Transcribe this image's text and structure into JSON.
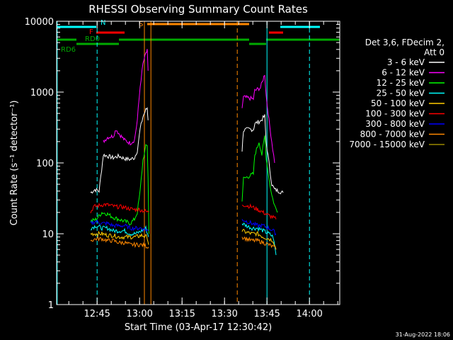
{
  "chart_data": {
    "type": "line",
    "title": "RHESSI Observing Summary Count Rates",
    "xlabel": "Start Time (03-Apr-17 12:30:42)",
    "ylabel": "Count Rate (s⁻¹ detector⁻¹)",
    "yscale": "log",
    "ylim": [
      1,
      10000
    ],
    "xlim_minutes": [
      0,
      100
    ],
    "grid": false,
    "x_ticks": [
      {
        "label": "12:45",
        "t": 14.3
      },
      {
        "label": "13:00",
        "t": 29.3
      },
      {
        "label": "13:15",
        "t": 44.3
      },
      {
        "label": "13:30",
        "t": 59.3
      },
      {
        "label": "13:45",
        "t": 74.3
      },
      {
        "label": "14:00",
        "t": 89.3
      }
    ],
    "y_ticks": [
      {
        "label": "1",
        "v": 1
      },
      {
        "label": "10",
        "v": 10
      },
      {
        "label": "100",
        "v": 100
      },
      {
        "label": "1000",
        "v": 1000
      },
      {
        "label": "10000",
        "v": 10000
      }
    ],
    "legend": {
      "placement": "right",
      "header": [
        "Det 3,6, FDecim 2,",
        "Att 0"
      ]
    },
    "series": [
      {
        "name": "3 - 6 keV",
        "color": "#ffffff",
        "segments": [
          [
            [
              12.0,
              38
            ],
            [
              13.5,
              42
            ],
            [
              15.0,
              40
            ],
            [
              16.5,
              130
            ],
            [
              18,
              125
            ],
            [
              20,
              118
            ],
            [
              22,
              125
            ],
            [
              24,
              115
            ],
            [
              26,
              112
            ],
            [
              27.5,
              118
            ],
            [
              28.5,
              150
            ],
            [
              29.5,
              300
            ],
            [
              30.5,
              450
            ],
            [
              31.5,
              560
            ],
            [
              32,
              600
            ],
            [
              32.3,
              400
            ]
          ],
          [
            [
              65.5,
              150
            ],
            [
              66.0,
              290
            ],
            [
              68,
              300
            ],
            [
              69.5,
              295
            ],
            [
              70,
              360
            ],
            [
              72,
              390
            ],
            [
              73.5,
              460
            ],
            [
              74,
              200
            ],
            [
              75,
              100
            ],
            [
              76,
              50
            ],
            [
              77,
              42
            ],
            [
              78.5,
              40
            ],
            [
              80,
              38
            ]
          ]
        ]
      },
      {
        "name": "6 - 12 keV",
        "color": "#ff00ff",
        "segments": [
          [
            [
              16.5,
              200
            ],
            [
              18,
              230
            ],
            [
              20,
              240
            ],
            [
              21,
              300
            ],
            [
              22,
              260
            ],
            [
              24,
              210
            ],
            [
              26,
              190
            ],
            [
              27.5,
              210
            ],
            [
              28.5,
              400
            ],
            [
              29.5,
              1200
            ],
            [
              30.5,
              2500
            ],
            [
              31.5,
              3500
            ],
            [
              32,
              3800
            ],
            [
              32.3,
              2000
            ]
          ],
          [
            [
              65.5,
              600
            ],
            [
              66.0,
              850
            ],
            [
              68,
              820
            ],
            [
              69.5,
              800
            ],
            [
              70,
              1050
            ],
            [
              72,
              1150
            ],
            [
              73.5,
              1800
            ],
            [
              74,
              900
            ],
            [
              75,
              400
            ],
            [
              76,
              200
            ],
            [
              77,
              100
            ]
          ]
        ]
      },
      {
        "name": "12 - 25 keV",
        "color": "#00ff00",
        "segments": [
          [
            [
              12.0,
              15
            ],
            [
              14,
              16
            ],
            [
              16,
              20
            ],
            [
              18,
              19
            ],
            [
              20,
              17
            ],
            [
              22,
              16
            ],
            [
              24,
              15
            ],
            [
              26,
              14
            ],
            [
              27.5,
              16
            ],
            [
              28.5,
              20
            ],
            [
              29.5,
              40
            ],
            [
              30.5,
              110
            ],
            [
              31.5,
              170
            ],
            [
              32,
              180
            ],
            [
              32.3,
              60
            ],
            [
              32.6,
              10
            ]
          ],
          [
            [
              65.5,
              30
            ],
            [
              66.0,
              60
            ],
            [
              68,
              65
            ],
            [
              69.5,
              70
            ],
            [
              70,
              130
            ],
            [
              71.5,
              200
            ],
            [
              72.5,
              130
            ],
            [
              73.5,
              240
            ],
            [
              74,
              120
            ],
            [
              75,
              60
            ],
            [
              76,
              35
            ],
            [
              77,
              25
            ],
            [
              78,
              20
            ]
          ]
        ]
      },
      {
        "name": "25 - 50 keV",
        "color": "#00ffff",
        "segments": [
          [
            [
              12.0,
              12
            ],
            [
              14,
              13
            ],
            [
              16,
              12
            ],
            [
              18,
              12
            ],
            [
              20,
              11
            ],
            [
              22,
              11
            ],
            [
              24,
              11
            ],
            [
              26,
              10
            ],
            [
              28,
              10
            ],
            [
              30,
              11
            ],
            [
              31.5,
              12
            ],
            [
              32.5,
              9
            ]
          ],
          [
            [
              65.5,
              14
            ],
            [
              67,
              13
            ],
            [
              69,
              12
            ],
            [
              71,
              12
            ],
            [
              73,
              11
            ],
            [
              75,
              10
            ],
            [
              76.5,
              9
            ],
            [
              77.5,
              5
            ]
          ]
        ]
      },
      {
        "name": "50 - 100 keV",
        "color": "#ffcc00",
        "segments": [
          [
            [
              12.0,
              10
            ],
            [
              14,
              10
            ],
            [
              16,
              10
            ],
            [
              18,
              9.5
            ],
            [
              20,
              9.5
            ],
            [
              22,
              9
            ],
            [
              24,
              9
            ],
            [
              26,
              9
            ],
            [
              28,
              9
            ],
            [
              30,
              9.5
            ],
            [
              32,
              9
            ],
            [
              32.5,
              7
            ]
          ],
          [
            [
              65.5,
              11
            ],
            [
              67,
              10.5
            ],
            [
              69,
              10
            ],
            [
              71,
              10
            ],
            [
              73,
              9
            ],
            [
              75,
              8.5
            ],
            [
              76.5,
              8
            ],
            [
              77.5,
              6
            ]
          ]
        ]
      },
      {
        "name": "100 - 300 keV",
        "color": "#ff0000",
        "segments": [
          [
            [
              12.0,
              20
            ],
            [
              13,
              24
            ],
            [
              15,
              25
            ],
            [
              17,
              26
            ],
            [
              19,
              25
            ],
            [
              21,
              24
            ],
            [
              23,
              24
            ],
            [
              25,
              23
            ],
            [
              27,
              22
            ],
            [
              29,
              22
            ],
            [
              31,
              21
            ],
            [
              32.5,
              20
            ]
          ],
          [
            [
              65.5,
              26
            ],
            [
              67,
              25
            ],
            [
              69,
              24
            ],
            [
              71,
              22
            ],
            [
              73,
              20
            ],
            [
              75,
              18
            ],
            [
              76.5,
              17
            ],
            [
              77.5,
              16
            ]
          ]
        ]
      },
      {
        "name": "300 - 800 keV",
        "color": "#0000ff",
        "segments": [
          [
            [
              12.0,
              14
            ],
            [
              14,
              15
            ],
            [
              16,
              14
            ],
            [
              18,
              14
            ],
            [
              20,
              13
            ],
            [
              22,
              13
            ],
            [
              24,
              13
            ],
            [
              26,
              12
            ],
            [
              28,
              12
            ],
            [
              30,
              12
            ],
            [
              32.5,
              11
            ]
          ],
          [
            [
              65.5,
              16
            ],
            [
              67,
              15
            ],
            [
              69,
              14
            ],
            [
              71,
              13
            ],
            [
              73,
              13
            ],
            [
              75,
              12
            ],
            [
              76.5,
              11
            ],
            [
              77.5,
              10
            ]
          ]
        ]
      },
      {
        "name": "800 - 7000 keV",
        "color": "#ff8800",
        "segments": [
          [
            [
              12.0,
              8
            ],
            [
              14,
              8.5
            ],
            [
              16,
              8.5
            ],
            [
              18,
              8
            ],
            [
              20,
              8
            ],
            [
              22,
              7.5
            ],
            [
              24,
              7.5
            ],
            [
              26,
              7
            ],
            [
              28,
              7
            ],
            [
              30,
              7
            ],
            [
              32.5,
              6.5
            ]
          ],
          [
            [
              65.5,
              9
            ],
            [
              67,
              8.5
            ],
            [
              69,
              8
            ],
            [
              71,
              8
            ],
            [
              73,
              7.5
            ],
            [
              75,
              7
            ],
            [
              76.5,
              6.5
            ],
            [
              77.5,
              6
            ]
          ]
        ]
      },
      {
        "name": "7000 - 15000 keV",
        "color": "#998800",
        "segments": []
      }
    ],
    "flag_bars": [
      {
        "label": "N",
        "color": "#00ffff",
        "y": 8,
        "segments": [
          [
            0,
            14
          ],
          [
            79,
            93
          ]
        ]
      },
      {
        "label": "F",
        "color": "#ff0000",
        "y": 16,
        "segments": [
          [
            14,
            24
          ],
          [
            75,
            80
          ]
        ]
      },
      {
        "label": "S",
        "color": "#ff8800",
        "y": 4,
        "segments": [
          [
            32,
            68
          ]
        ]
      },
      {
        "label": "RD0",
        "color": "#00aa00",
        "y": 26,
        "segments": [
          [
            0,
            7
          ],
          [
            22,
            68
          ],
          [
            74,
            100
          ]
        ]
      },
      {
        "label": "RD6",
        "color": "#00aa00",
        "y": 32,
        "segments": [
          [
            7,
            22
          ],
          [
            68,
            74
          ]
        ]
      }
    ],
    "vlines": [
      {
        "t": 0.2,
        "color": "#00ffff",
        "style": "solid"
      },
      {
        "t": 14.3,
        "color": "#00ffff",
        "style": "dashed"
      },
      {
        "t": 31.0,
        "color": "#ff8800",
        "style": "solid"
      },
      {
        "t": 33.3,
        "color": "#ff8800",
        "style": "solid"
      },
      {
        "t": 63.8,
        "color": "#ff8800",
        "style": "dashed"
      },
      {
        "t": 74.3,
        "color": "#00ffff",
        "style": "solid"
      },
      {
        "t": 89.3,
        "color": "#00ffff",
        "style": "dashed"
      }
    ]
  },
  "footer": {
    "date": "31-Aug-2022 18:06"
  }
}
